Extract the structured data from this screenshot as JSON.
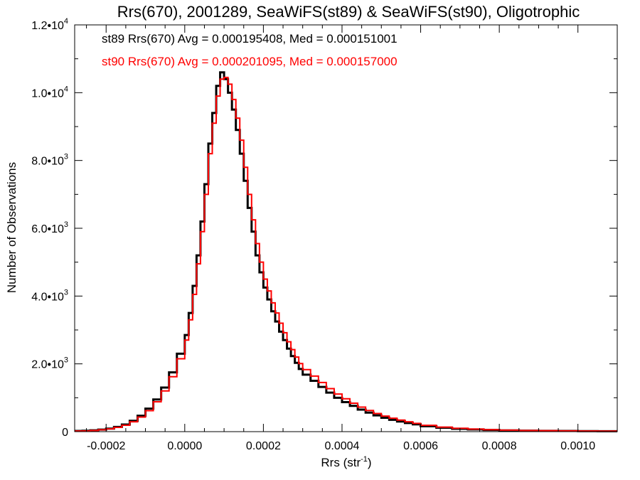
{
  "chart_data": {
    "type": "line",
    "title": "Rrs(670), 2001289, SeaWiFS(st89) & SeaWiFS(st90), Oligotrophic",
    "xlabel": {
      "base": "Rrs (str",
      "sup": "-1",
      "tail": ")"
    },
    "ylabel": "Number of Observations",
    "xlim": [
      -0.00028,
      0.0011
    ],
    "ylim": [
      0,
      12000
    ],
    "x_ticks": [
      {
        "value": -0.0002,
        "label": "-0.0002"
      },
      {
        "value": 0.0,
        "label": "0.0000"
      },
      {
        "value": 0.0002,
        "label": "0.0002"
      },
      {
        "value": 0.0004,
        "label": "0.0004"
      },
      {
        "value": 0.0006,
        "label": "0.0006"
      },
      {
        "value": 0.0008,
        "label": "0.0008"
      },
      {
        "value": 0.001,
        "label": "0.0010"
      }
    ],
    "y_ticks": [
      {
        "value": 0,
        "mant": "0",
        "exp": ""
      },
      {
        "value": 2000,
        "mant": "2.0•10",
        "exp": "3"
      },
      {
        "value": 4000,
        "mant": "4.0•10",
        "exp": "3"
      },
      {
        "value": 6000,
        "mant": "6.0•10",
        "exp": "3"
      },
      {
        "value": 8000,
        "mant": "8.0•10",
        "exp": "3"
      },
      {
        "value": 10000,
        "mant": "1.0•10",
        "exp": "4"
      },
      {
        "value": 12000,
        "mant": "1.2•10",
        "exp": "4"
      }
    ],
    "annotations": [
      "st89 Rrs(670) Avg = 0.000195408, Med = 0.000151001",
      "st90 Rrs(670) Avg = 0.000201095, Med = 0.000157000"
    ],
    "style": {
      "histogram": "step",
      "grid": false
    },
    "series": [
      {
        "color": "#000000",
        "stroke_width": 3,
        "bin_edges": [
          -0.00028,
          -0.00026,
          -0.00024,
          -0.00022,
          -0.0002,
          -0.00018,
          -0.00016,
          -0.00014,
          -0.00012,
          -0.0001,
          -8e-05,
          -6e-05,
          -4e-05,
          -2e-05,
          0.0,
          1e-05,
          2e-05,
          3e-05,
          4e-05,
          5e-05,
          6e-05,
          7e-05,
          8e-05,
          9e-05,
          0.0001,
          0.00011,
          0.00012,
          0.00013,
          0.00014,
          0.00015,
          0.00016,
          0.00017,
          0.00018,
          0.00019,
          0.0002,
          0.00021,
          0.00022,
          0.00023,
          0.00024,
          0.00025,
          0.00026,
          0.00027,
          0.00028,
          0.00029,
          0.0003,
          0.00032,
          0.00034,
          0.00036,
          0.00038,
          0.0004,
          0.00042,
          0.00044,
          0.00046,
          0.00048,
          0.0005,
          0.00052,
          0.00054,
          0.00056,
          0.00058,
          0.0006,
          0.00064,
          0.00068,
          0.00072,
          0.00076,
          0.0008,
          0.00085,
          0.0009,
          0.00095,
          0.001,
          0.00105,
          0.0011
        ],
        "counts": [
          20,
          25,
          40,
          60,
          90,
          140,
          210,
          320,
          470,
          680,
          950,
          1300,
          1750,
          2300,
          2850,
          3500,
          4300,
          5200,
          6200,
          7300,
          8500,
          9400,
          10200,
          10600,
          10400,
          10000,
          9500,
          8900,
          8200,
          7400,
          6600,
          5900,
          5200,
          4700,
          4250,
          3900,
          3550,
          3250,
          2950,
          2700,
          2450,
          2230,
          2030,
          1850,
          1680,
          1500,
          1320,
          1150,
          1000,
          870,
          760,
          650,
          560,
          480,
          410,
          350,
          300,
          255,
          215,
          160,
          115,
          85,
          65,
          50,
          38,
          30,
          24,
          20,
          16,
          14
        ]
      },
      {
        "color": "#ff0000",
        "stroke_width": 2,
        "bin_edges": [
          -0.00028,
          -0.00026,
          -0.00024,
          -0.00022,
          -0.0002,
          -0.00018,
          -0.00016,
          -0.00014,
          -0.00012,
          -0.0001,
          -8e-05,
          -6e-05,
          -4e-05,
          -2e-05,
          0.0,
          1e-05,
          2e-05,
          3e-05,
          4e-05,
          5e-05,
          6e-05,
          7e-05,
          8e-05,
          9e-05,
          0.0001,
          0.00011,
          0.00012,
          0.00013,
          0.00014,
          0.00015,
          0.00016,
          0.00017,
          0.00018,
          0.00019,
          0.0002,
          0.00021,
          0.00022,
          0.00023,
          0.00024,
          0.00025,
          0.00026,
          0.00027,
          0.00028,
          0.00029,
          0.0003,
          0.00032,
          0.00034,
          0.00036,
          0.00038,
          0.0004,
          0.00042,
          0.00044,
          0.00046,
          0.00048,
          0.0005,
          0.00052,
          0.00054,
          0.00056,
          0.00058,
          0.0006,
          0.00064,
          0.00068,
          0.00072,
          0.00076,
          0.0008,
          0.00085,
          0.0009,
          0.00095,
          0.001,
          0.00105,
          0.0011
        ],
        "counts": [
          18,
          22,
          35,
          55,
          80,
          125,
          190,
          290,
          430,
          620,
          880,
          1200,
          1620,
          2150,
          2700,
          3300,
          4050,
          4950,
          5900,
          7000,
          8200,
          9100,
          9900,
          10400,
          10450,
          10250,
          9800,
          9250,
          8600,
          7800,
          7000,
          6250,
          5550,
          5000,
          4500,
          4150,
          3800,
          3500,
          3200,
          2920,
          2650,
          2420,
          2200,
          2010,
          1830,
          1640,
          1450,
          1270,
          1110,
          970,
          840,
          725,
          625,
          535,
          460,
          395,
          340,
          290,
          245,
          185,
          135,
          100,
          75,
          58,
          45,
          35,
          28,
          23,
          19,
          16
        ]
      }
    ]
  }
}
